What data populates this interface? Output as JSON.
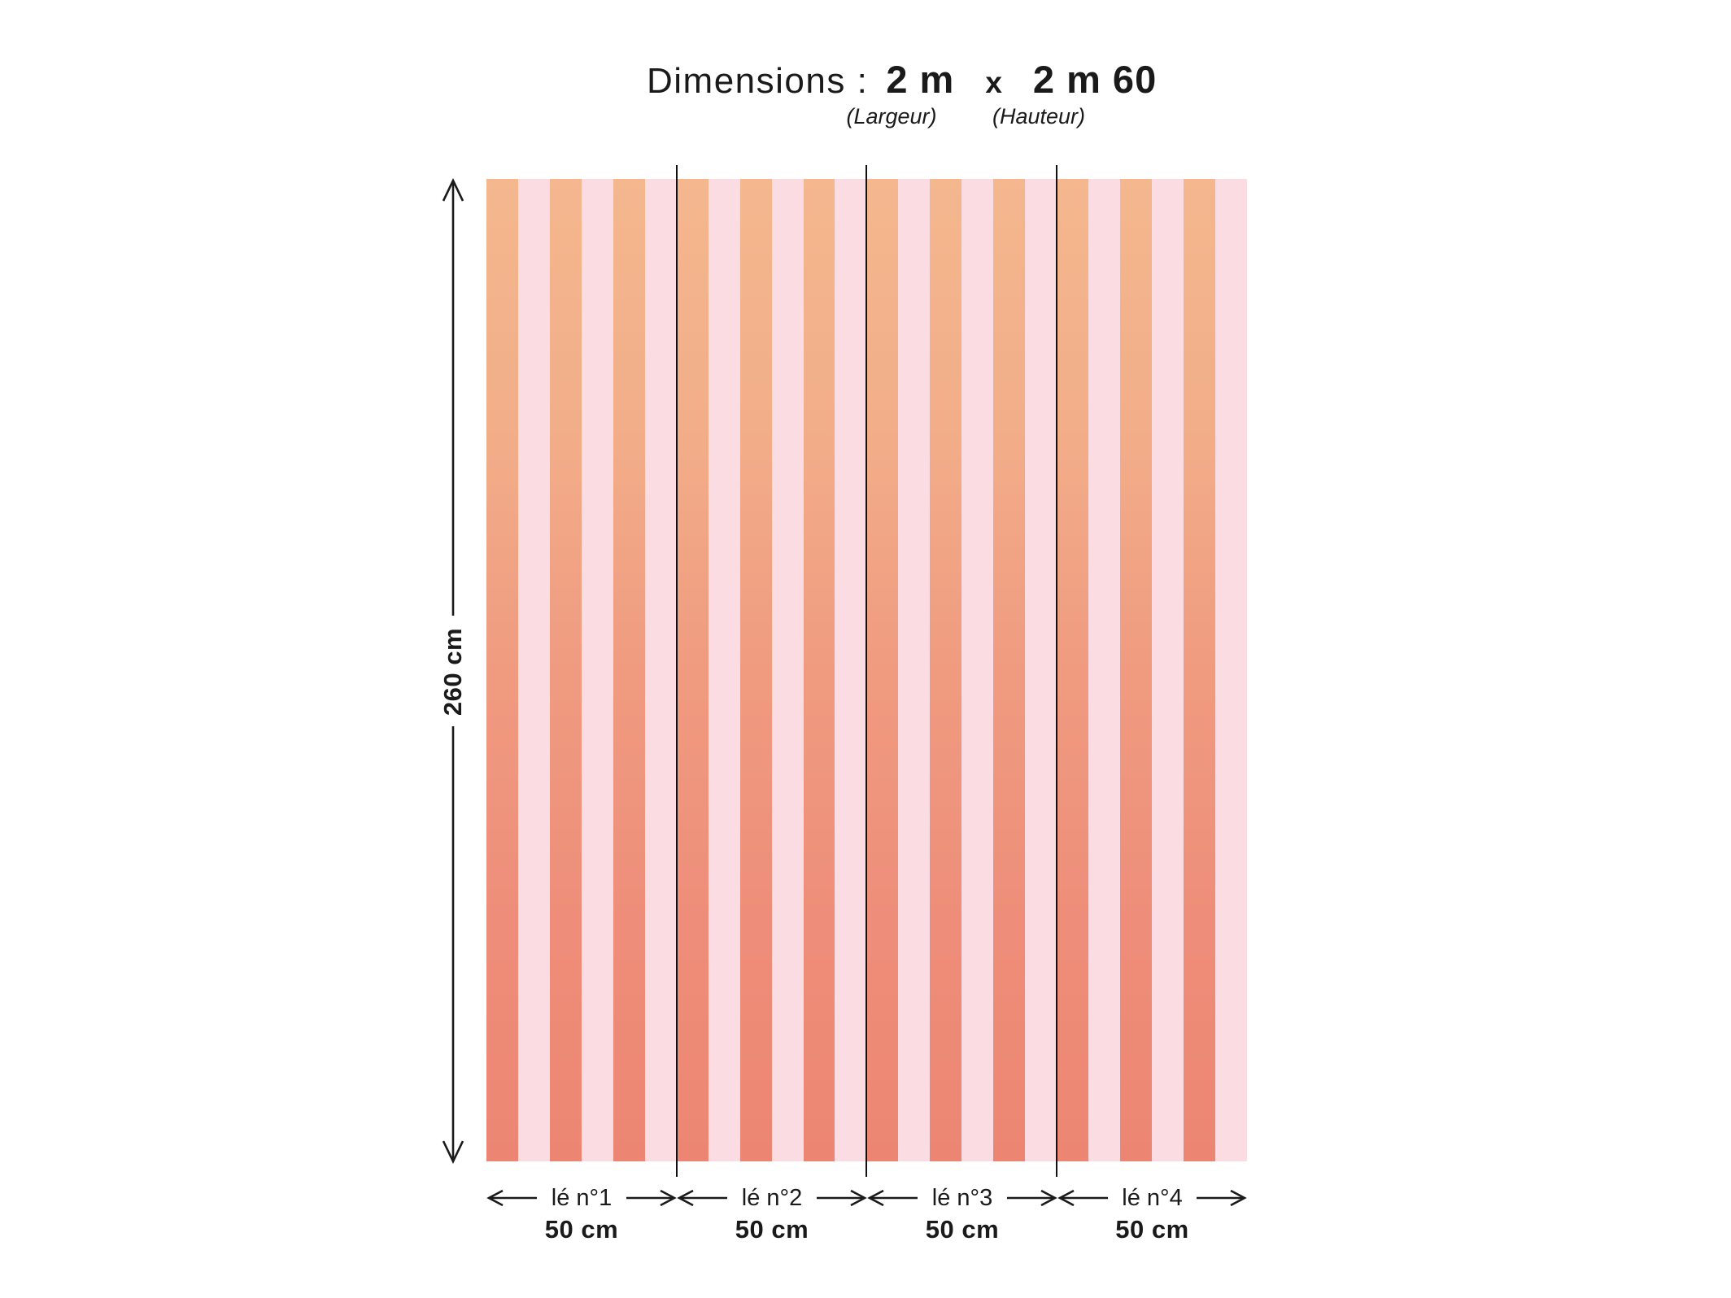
{
  "title": {
    "label": "Dimensions :",
    "width_value": "2 m",
    "separator": "x",
    "height_value": "2 m 60",
    "width_caption": "(Largeur)",
    "height_caption": "(Hauteur)"
  },
  "height_measure": {
    "label": "260 cm"
  },
  "wallpaper": {
    "stripe_count": 24,
    "stripes_per_panel": 6,
    "colors": {
      "orange_top": "#F4B78E",
      "orange_upper": "#F2AE89",
      "orange_mid": "#F09B80",
      "orange_lower": "#EE8E7A",
      "orange_bottom": "#EC8672",
      "pink": "#FBDCE3"
    },
    "divider_color": "#111111"
  },
  "panels": [
    {
      "label": "lé n°1",
      "size": "50 cm"
    },
    {
      "label": "lé n°2",
      "size": "50 cm"
    },
    {
      "label": "lé n°3",
      "size": "50 cm"
    },
    {
      "label": "lé n°4",
      "size": "50 cm"
    }
  ],
  "text_color": "#1a1a1a"
}
